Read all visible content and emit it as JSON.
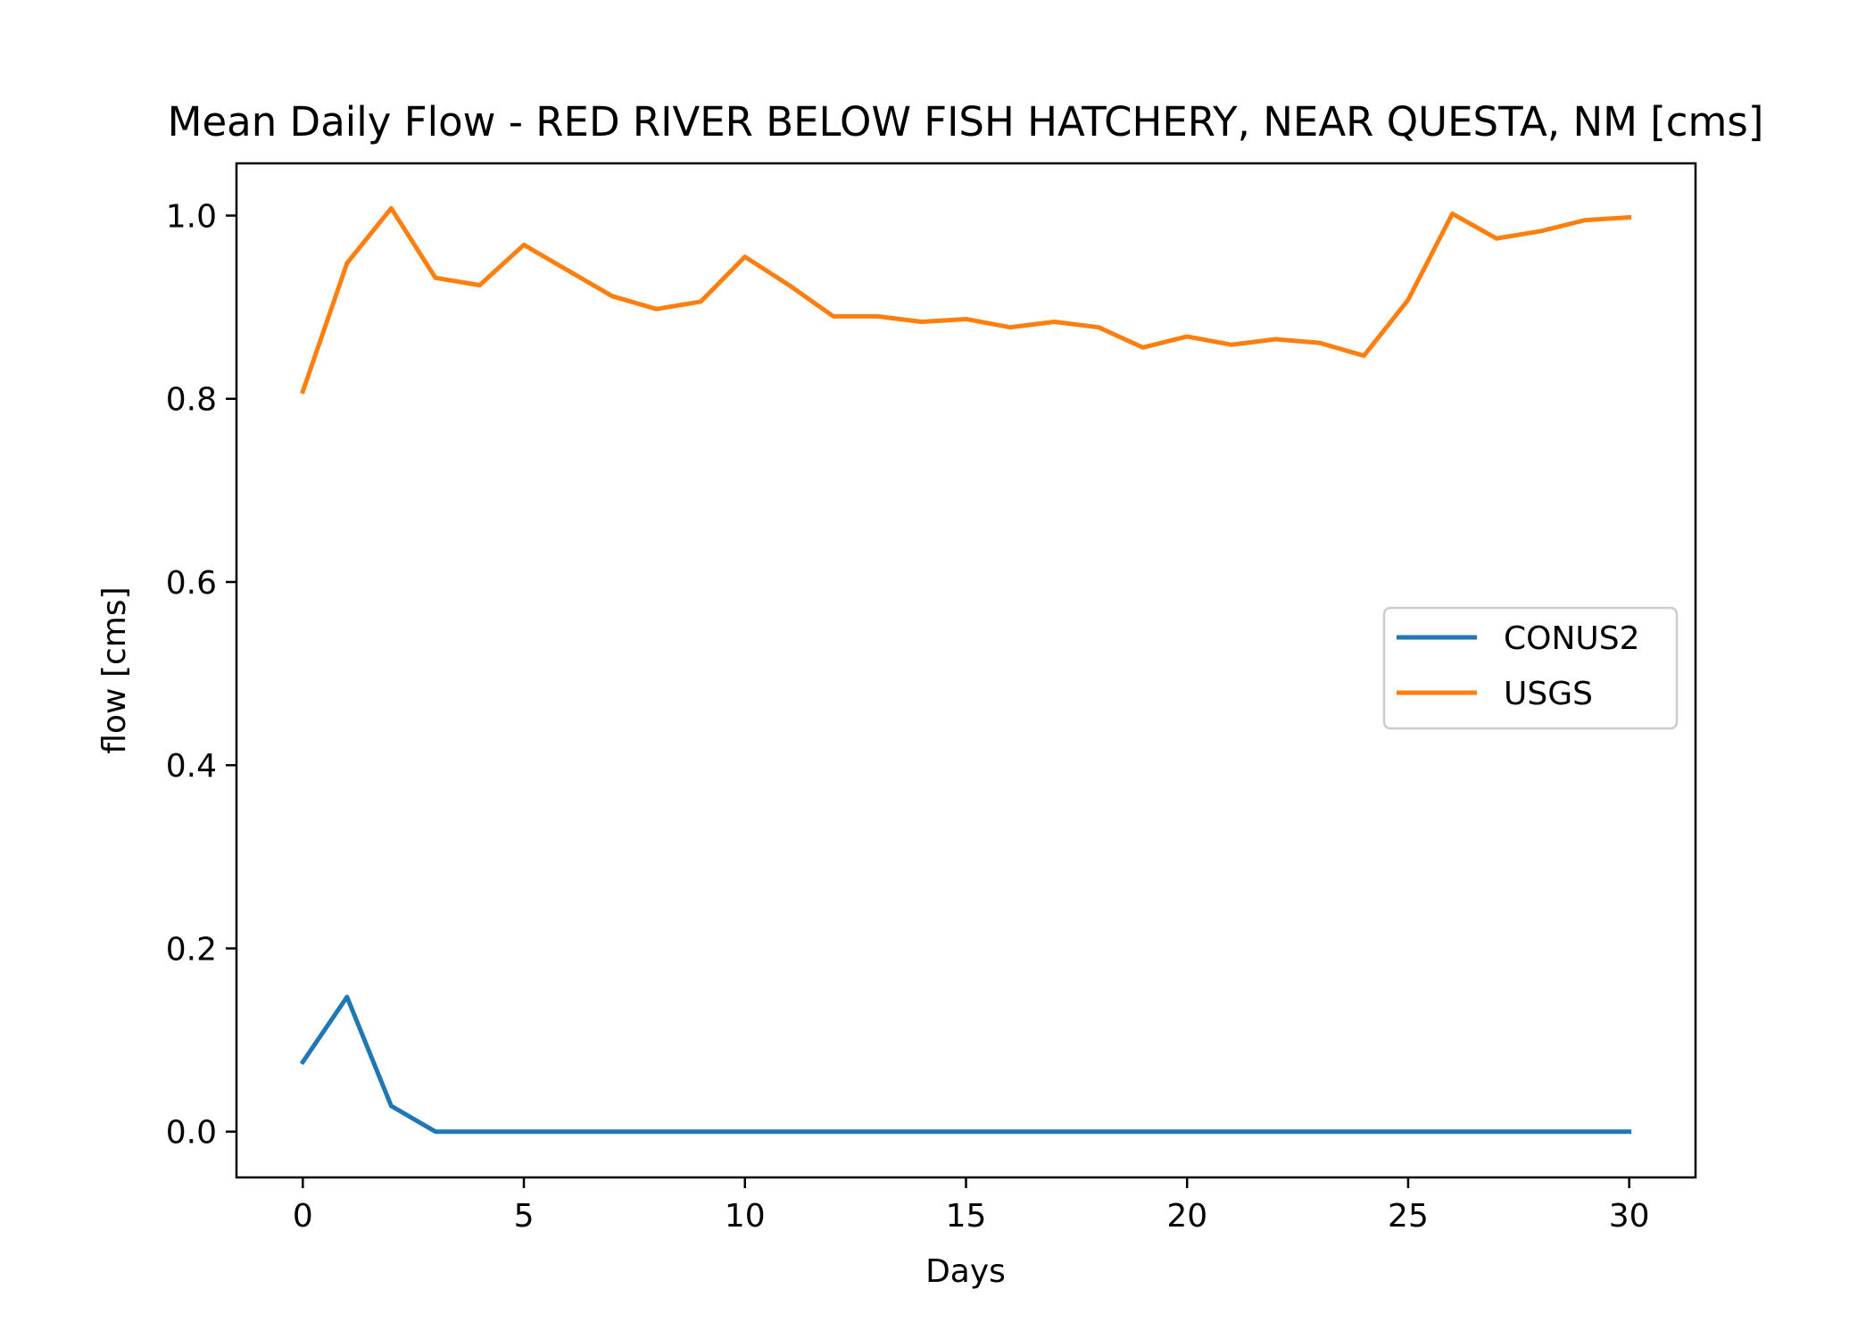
{
  "chart_data": {
    "type": "line",
    "title": "Mean Daily Flow - RED RIVER BELOW FISH HATCHERY, NEAR QUESTA, NM [cms]",
    "xlabel": "Days",
    "ylabel": "flow [cms]",
    "xlim": [
      -1.5,
      31.5
    ],
    "ylim": [
      -0.05,
      1.057
    ],
    "xticks": [
      0,
      5,
      10,
      15,
      20,
      25,
      30
    ],
    "xtick_labels": [
      "0",
      "5",
      "10",
      "15",
      "20",
      "25",
      "30"
    ],
    "yticks": [
      0.0,
      0.2,
      0.4,
      0.6,
      0.8,
      1.0
    ],
    "ytick_labels": [
      "0.0",
      "0.2",
      "0.4",
      "0.6",
      "0.8",
      "1.0"
    ],
    "grid": false,
    "legend": {
      "placement": "center-right",
      "entries": [
        "CONUS2",
        "USGS"
      ]
    },
    "x": [
      0,
      1,
      2,
      3,
      4,
      5,
      6,
      7,
      8,
      9,
      10,
      11,
      12,
      13,
      14,
      15,
      16,
      17,
      18,
      19,
      20,
      21,
      22,
      23,
      24,
      25,
      26,
      27,
      28,
      29,
      30
    ],
    "series": [
      {
        "name": "CONUS2",
        "color": "#1f77b4",
        "values": [
          0.076,
          0.147,
          0.028,
          0.0,
          0.0,
          0.0,
          0.0,
          0.0,
          0.0,
          0.0,
          0.0,
          0.0,
          0.0,
          0.0,
          0.0,
          0.0,
          0.0,
          0.0,
          0.0,
          0.0,
          0.0,
          0.0,
          0.0,
          0.0,
          0.0,
          0.0,
          0.0,
          0.0,
          0.0,
          0.0,
          0.0
        ]
      },
      {
        "name": "USGS",
        "color": "#ff7f0e",
        "values": [
          0.808,
          0.948,
          1.008,
          0.932,
          0.924,
          0.968,
          0.94,
          0.912,
          0.898,
          0.906,
          0.955,
          0.924,
          0.89,
          0.89,
          0.884,
          0.887,
          0.878,
          0.884,
          0.878,
          0.856,
          0.868,
          0.859,
          0.865,
          0.861,
          0.847,
          0.908,
          1.002,
          0.975,
          0.983,
          0.995,
          0.998
        ]
      }
    ]
  }
}
